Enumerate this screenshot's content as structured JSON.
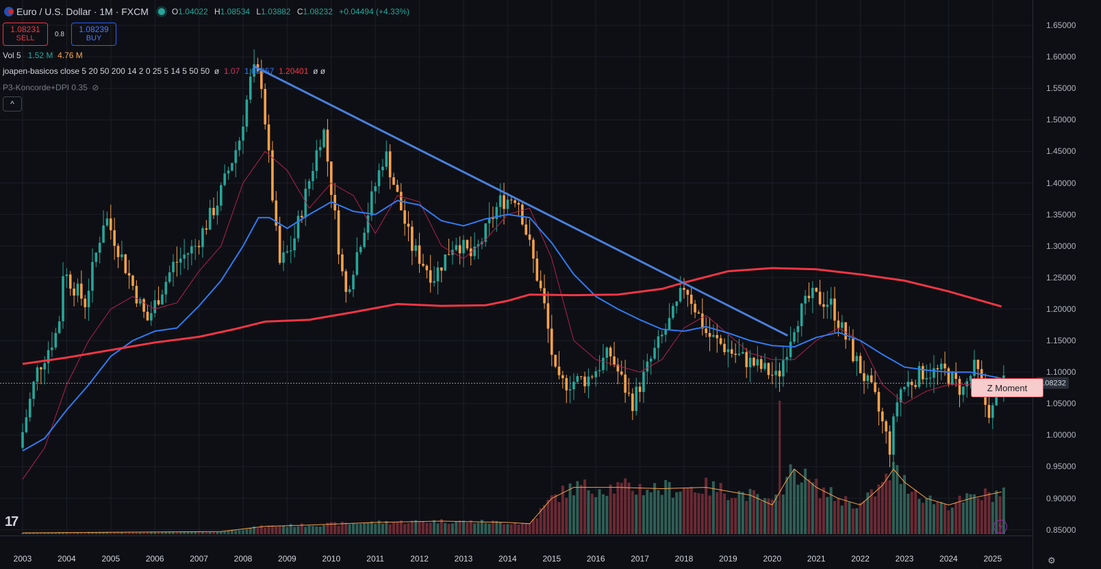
{
  "header": {
    "symbol": "Euro / U.S. Dollar · 1M · FXCM",
    "open_label": "O",
    "open": "1.04022",
    "high_label": "H",
    "high": "1.08534",
    "low_label": "L",
    "low": "1.03882",
    "close_label": "C",
    "close": "1.08232",
    "change": "+0.04494 (+4.33%)"
  },
  "trade": {
    "sell_price": "1.08231",
    "sell_label": "SELL",
    "spread": "0.8",
    "buy_price": "1.08239",
    "buy_label": "BUY"
  },
  "indicators": {
    "vol_name": "Vol 5",
    "vol_a": "1.52 M",
    "vol_b": "4.76 M",
    "ma_name": "joapen-basicos close 5 20 50 200 14 2 0 25 5 14 5 50 50",
    "ma_sym1": "ø",
    "ma_val1": "1.07",
    "ma_val2": "1.08957",
    "ma_val3": "1.20401",
    "ma_sym2": "ø ø",
    "konc_name": "P3-Koncorde+DPI 0.35",
    "collapse_icon": "^"
  },
  "price_axis": {
    "labels": [
      "1.65000",
      "1.60000",
      "1.55000",
      "1.50000",
      "1.45000",
      "1.40000",
      "1.35000",
      "1.30000",
      "1.25000",
      "1.20000",
      "1.15000",
      "1.10000",
      "1.05000",
      "1.00000",
      "0.95000",
      "0.90000",
      "0.85000"
    ],
    "current_price": "1.08232"
  },
  "time_axis": {
    "labels": [
      "2003",
      "2004",
      "2005",
      "2006",
      "2007",
      "2008",
      "2009",
      "2010",
      "2011",
      "2012",
      "2013",
      "2014",
      "2015",
      "2016",
      "2017",
      "2018",
      "2019",
      "2020",
      "2021",
      "2022",
      "2023",
      "2024",
      "2025"
    ]
  },
  "annotation": {
    "label": "Z Moment"
  },
  "colors": {
    "up": "#26a69a",
    "down": "#f7a24b",
    "ma50": "#2e7cf6",
    "ma200": "#f23645",
    "ma20": "#b0224f",
    "trendline": "#4a7fdc",
    "vol_up": "#2f5e55",
    "vol_down": "#6b2a34"
  },
  "chart_data": {
    "type": "candlestick",
    "title": "Euro / U.S. Dollar · 1M · FXCM",
    "x_start": 2003.0,
    "x_end": 2025.25,
    "ylim": [
      0.84,
      1.67
    ],
    "key_points": [
      [
        2003.0,
        0.98
      ],
      [
        2003.4,
        1.1
      ],
      [
        2003.9,
        1.17
      ],
      [
        2004.0,
        1.26
      ],
      [
        2004.5,
        1.21
      ],
      [
        2004.95,
        1.35
      ],
      [
        2005.4,
        1.27
      ],
      [
        2005.9,
        1.18
      ],
      [
        2006.5,
        1.27
      ],
      [
        2007.0,
        1.3
      ],
      [
        2007.5,
        1.37
      ],
      [
        2008.0,
        1.47
      ],
      [
        2008.3,
        1.58
      ],
      [
        2008.5,
        1.56
      ],
      [
        2008.9,
        1.27
      ],
      [
        2009.2,
        1.3
      ],
      [
        2009.9,
        1.49
      ],
      [
        2010.4,
        1.22
      ],
      [
        2010.9,
        1.35
      ],
      [
        2011.3,
        1.45
      ],
      [
        2011.9,
        1.3
      ],
      [
        2012.4,
        1.25
      ],
      [
        2012.9,
        1.31
      ],
      [
        2013.3,
        1.28
      ],
      [
        2013.9,
        1.37
      ],
      [
        2014.3,
        1.38
      ],
      [
        2014.9,
        1.21
      ],
      [
        2015.2,
        1.08
      ],
      [
        2015.9,
        1.09
      ],
      [
        2016.4,
        1.13
      ],
      [
        2016.9,
        1.05
      ],
      [
        2017.4,
        1.13
      ],
      [
        2017.9,
        1.2
      ],
      [
        2018.1,
        1.24
      ],
      [
        2018.6,
        1.16
      ],
      [
        2019.2,
        1.13
      ],
      [
        2020.0,
        1.1
      ],
      [
        2020.2,
        1.09
      ],
      [
        2020.6,
        1.18
      ],
      [
        2020.95,
        1.22
      ],
      [
        2021.4,
        1.21
      ],
      [
        2021.9,
        1.13
      ],
      [
        2022.4,
        1.06
      ],
      [
        2022.75,
        0.98
      ],
      [
        2022.95,
        1.07
      ],
      [
        2023.5,
        1.1
      ],
      [
        2024.0,
        1.1
      ],
      [
        2024.4,
        1.07
      ],
      [
        2024.7,
        1.11
      ],
      [
        2024.95,
        1.04
      ],
      [
        2025.1,
        1.04
      ],
      [
        2025.2,
        1.08
      ]
    ],
    "ma200_points": [
      [
        2003.0,
        1.113
      ],
      [
        2004.0,
        1.123
      ],
      [
        2005.0,
        1.135
      ],
      [
        2006.0,
        1.147
      ],
      [
        2007.0,
        1.156
      ],
      [
        2007.8,
        1.168
      ],
      [
        2008.5,
        1.18
      ],
      [
        2009.5,
        1.183
      ],
      [
        2010.5,
        1.195
      ],
      [
        2011.5,
        1.208
      ],
      [
        2012.5,
        1.205
      ],
      [
        2013.5,
        1.206
      ],
      [
        2014.0,
        1.213
      ],
      [
        2014.5,
        1.223
      ],
      [
        2015.5,
        1.222
      ],
      [
        2016.5,
        1.223
      ],
      [
        2017.5,
        1.232
      ],
      [
        2018.0,
        1.242
      ],
      [
        2019.0,
        1.26
      ],
      [
        2020.0,
        1.265
      ],
      [
        2021.0,
        1.263
      ],
      [
        2022.0,
        1.255
      ],
      [
        2023.0,
        1.245
      ],
      [
        2024.0,
        1.228
      ],
      [
        2025.2,
        1.204
      ]
    ],
    "ma50_points": [
      [
        2003.0,
        0.975
      ],
      [
        2003.5,
        0.995
      ],
      [
        2004.0,
        1.04
      ],
      [
        2004.5,
        1.08
      ],
      [
        2005.0,
        1.125
      ],
      [
        2005.5,
        1.15
      ],
      [
        2006.0,
        1.165
      ],
      [
        2006.5,
        1.17
      ],
      [
        2007.0,
        1.205
      ],
      [
        2007.5,
        1.245
      ],
      [
        2008.0,
        1.3
      ],
      [
        2008.35,
        1.345
      ],
      [
        2008.6,
        1.345
      ],
      [
        2009.0,
        1.328
      ],
      [
        2009.5,
        1.35
      ],
      [
        2010.0,
        1.37
      ],
      [
        2010.5,
        1.355
      ],
      [
        2011.0,
        1.35
      ],
      [
        2011.5,
        1.372
      ],
      [
        2012.0,
        1.365
      ],
      [
        2012.5,
        1.34
      ],
      [
        2013.0,
        1.332
      ],
      [
        2013.5,
        1.343
      ],
      [
        2014.0,
        1.35
      ],
      [
        2014.5,
        1.345
      ],
      [
        2015.0,
        1.305
      ],
      [
        2015.5,
        1.255
      ],
      [
        2016.0,
        1.22
      ],
      [
        2016.5,
        1.2
      ],
      [
        2017.0,
        1.183
      ],
      [
        2017.5,
        1.168
      ],
      [
        2018.0,
        1.165
      ],
      [
        2018.5,
        1.172
      ],
      [
        2019.0,
        1.162
      ],
      [
        2019.5,
        1.15
      ],
      [
        2020.0,
        1.142
      ],
      [
        2020.5,
        1.14
      ],
      [
        2021.0,
        1.155
      ],
      [
        2021.5,
        1.163
      ],
      [
        2022.0,
        1.15
      ],
      [
        2022.5,
        1.128
      ],
      [
        2023.0,
        1.108
      ],
      [
        2023.5,
        1.103
      ],
      [
        2024.0,
        1.1
      ],
      [
        2024.5,
        1.1
      ],
      [
        2025.2,
        1.09
      ]
    ],
    "ma20_points": [
      [
        2003.0,
        0.93
      ],
      [
        2003.5,
        0.98
      ],
      [
        2004.0,
        1.08
      ],
      [
        2004.5,
        1.15
      ],
      [
        2005.0,
        1.2
      ],
      [
        2005.5,
        1.22
      ],
      [
        2006.0,
        1.2
      ],
      [
        2006.5,
        1.21
      ],
      [
        2007.0,
        1.26
      ],
      [
        2007.5,
        1.3
      ],
      [
        2008.0,
        1.4
      ],
      [
        2008.5,
        1.45
      ],
      [
        2009.0,
        1.42
      ],
      [
        2009.5,
        1.36
      ],
      [
        2010.0,
        1.4
      ],
      [
        2010.5,
        1.38
      ],
      [
        2011.0,
        1.32
      ],
      [
        2011.5,
        1.38
      ],
      [
        2012.0,
        1.37
      ],
      [
        2012.5,
        1.3
      ],
      [
        2013.0,
        1.28
      ],
      [
        2013.5,
        1.31
      ],
      [
        2014.0,
        1.35
      ],
      [
        2014.5,
        1.36
      ],
      [
        2015.0,
        1.28
      ],
      [
        2015.5,
        1.15
      ],
      [
        2016.0,
        1.12
      ],
      [
        2016.5,
        1.11
      ],
      [
        2017.0,
        1.1
      ],
      [
        2017.5,
        1.12
      ],
      [
        2018.0,
        1.17
      ],
      [
        2018.5,
        1.19
      ],
      [
        2019.0,
        1.16
      ],
      [
        2019.5,
        1.13
      ],
      [
        2020.0,
        1.12
      ],
      [
        2020.5,
        1.12
      ],
      [
        2021.0,
        1.15
      ],
      [
        2021.5,
        1.17
      ],
      [
        2022.0,
        1.15
      ],
      [
        2022.5,
        1.08
      ],
      [
        2023.0,
        1.05
      ],
      [
        2023.5,
        1.07
      ],
      [
        2024.0,
        1.08
      ],
      [
        2024.5,
        1.08
      ],
      [
        2025.2,
        1.08
      ]
    ],
    "volume_points": [
      [
        2003.0,
        0.02
      ],
      [
        2007.5,
        0.04
      ],
      [
        2008.5,
        0.12
      ],
      [
        2009.5,
        0.14
      ],
      [
        2011.0,
        0.18
      ],
      [
        2012.5,
        0.2
      ],
      [
        2014.0,
        0.18
      ],
      [
        2014.5,
        0.16
      ],
      [
        2015.0,
        0.55
      ],
      [
        2015.5,
        0.72
      ],
      [
        2016.5,
        0.72
      ],
      [
        2017.5,
        0.7
      ],
      [
        2018.5,
        0.72
      ],
      [
        2019.5,
        0.6
      ],
      [
        2020.0,
        0.45
      ],
      [
        2020.3,
        0.8
      ],
      [
        2020.5,
        1.0
      ],
      [
        2021.0,
        0.72
      ],
      [
        2021.5,
        0.55
      ],
      [
        2022.0,
        0.45
      ],
      [
        2022.5,
        0.75
      ],
      [
        2022.75,
        1.0
      ],
      [
        2023.0,
        0.8
      ],
      [
        2023.5,
        0.55
      ],
      [
        2024.0,
        0.45
      ],
      [
        2024.5,
        0.55
      ],
      [
        2025.2,
        0.65
      ]
    ],
    "volume_spike": {
      "x": 2020.17,
      "value": 1.0
    },
    "trendline": {
      "from": [
        2008.25,
        1.585
      ],
      "to": [
        2020.35,
        1.158
      ]
    }
  }
}
